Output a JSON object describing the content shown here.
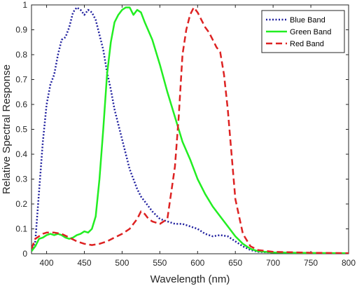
{
  "chart_data": {
    "type": "line",
    "title": "",
    "xlabel": "Wavelength (nm)",
    "ylabel": "Relative Spectral Response",
    "xlim": [
      380,
      800
    ],
    "ylim": [
      0,
      1
    ],
    "xticks": [
      400,
      450,
      500,
      550,
      600,
      650,
      700,
      750,
      800
    ],
    "yticks": [
      0,
      0.1,
      0.2,
      0.3,
      0.4,
      0.5,
      0.6,
      0.7,
      0.8,
      0.9,
      1
    ],
    "xtick_labels": [
      "400",
      "450",
      "500",
      "550",
      "600",
      "650",
      "700",
      "750",
      "800"
    ],
    "ytick_labels": [
      "0",
      "0.1",
      "0.2",
      "0.3",
      "0.4",
      "0.5",
      "0.6",
      "0.7",
      "0.8",
      "0.9",
      "1"
    ],
    "grid": false,
    "legend_position": "top-right",
    "series": [
      {
        "name": "Blue Band",
        "color": "#1f1f9e",
        "style": "dotted",
        "x": [
          380,
          385,
          390,
          395,
          400,
          405,
          410,
          415,
          420,
          425,
          430,
          435,
          440,
          445,
          450,
          455,
          460,
          465,
          470,
          475,
          480,
          485,
          490,
          495,
          500,
          505,
          510,
          515,
          520,
          525,
          530,
          540,
          550,
          560,
          570,
          580,
          590,
          600,
          610,
          620,
          630,
          640,
          650,
          660,
          670,
          680,
          700,
          750,
          800
        ],
        "y": [
          0.01,
          0.05,
          0.25,
          0.45,
          0.6,
          0.68,
          0.72,
          0.8,
          0.86,
          0.87,
          0.91,
          0.97,
          0.99,
          0.98,
          0.96,
          0.98,
          0.97,
          0.94,
          0.88,
          0.82,
          0.73,
          0.66,
          0.58,
          0.52,
          0.46,
          0.4,
          0.34,
          0.3,
          0.26,
          0.23,
          0.21,
          0.17,
          0.14,
          0.13,
          0.12,
          0.12,
          0.11,
          0.1,
          0.08,
          0.07,
          0.075,
          0.07,
          0.05,
          0.03,
          0.015,
          0.008,
          0.005,
          0.002,
          0.001
        ]
      },
      {
        "name": "Green Band",
        "color": "#22ee22",
        "style": "solid",
        "x": [
          380,
          385,
          390,
          395,
          400,
          405,
          410,
          415,
          420,
          425,
          430,
          435,
          440,
          445,
          450,
          455,
          460,
          465,
          470,
          475,
          480,
          485,
          490,
          495,
          500,
          505,
          510,
          515,
          520,
          525,
          530,
          540,
          550,
          560,
          570,
          580,
          590,
          600,
          610,
          620,
          630,
          640,
          650,
          660,
          670,
          680,
          700,
          750,
          800
        ],
        "y": [
          0.01,
          0.03,
          0.06,
          0.065,
          0.075,
          0.08,
          0.075,
          0.08,
          0.075,
          0.065,
          0.06,
          0.065,
          0.075,
          0.08,
          0.09,
          0.085,
          0.1,
          0.15,
          0.3,
          0.5,
          0.72,
          0.85,
          0.93,
          0.96,
          0.98,
          0.99,
          0.99,
          0.96,
          0.98,
          0.97,
          0.93,
          0.86,
          0.76,
          0.65,
          0.55,
          0.45,
          0.38,
          0.3,
          0.24,
          0.19,
          0.15,
          0.11,
          0.07,
          0.04,
          0.02,
          0.01,
          0.005,
          0.003,
          0.002
        ]
      },
      {
        "name": "Red Band",
        "color": "#dd2222",
        "style": "dashed",
        "x": [
          380,
          385,
          390,
          395,
          400,
          405,
          410,
          420,
          430,
          440,
          450,
          460,
          470,
          480,
          490,
          500,
          510,
          515,
          520,
          525,
          530,
          535,
          540,
          550,
          560,
          570,
          575,
          580,
          585,
          590,
          595,
          600,
          605,
          610,
          615,
          620,
          625,
          630,
          635,
          640,
          645,
          650,
          660,
          670,
          680,
          700,
          750,
          800
        ],
        "y": [
          0.02,
          0.06,
          0.07,
          0.08,
          0.085,
          0.085,
          0.085,
          0.08,
          0.065,
          0.05,
          0.04,
          0.035,
          0.04,
          0.05,
          0.065,
          0.08,
          0.1,
          0.12,
          0.14,
          0.17,
          0.16,
          0.14,
          0.13,
          0.12,
          0.14,
          0.35,
          0.55,
          0.8,
          0.9,
          0.96,
          0.99,
          0.97,
          0.94,
          0.91,
          0.89,
          0.86,
          0.83,
          0.81,
          0.72,
          0.58,
          0.4,
          0.22,
          0.08,
          0.03,
          0.015,
          0.008,
          0.004,
          0.002
        ]
      }
    ]
  }
}
